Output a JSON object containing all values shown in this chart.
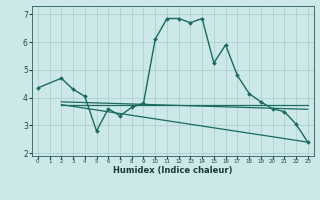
{
  "title": "",
  "xlabel": "Humidex (Indice chaleur)",
  "background_color": "#cce8e8",
  "grid_color": "#aacccc",
  "line_color": "#1a6b60",
  "xlim": [
    -0.5,
    23.5
  ],
  "ylim": [
    1.9,
    7.3
  ],
  "yticks": [
    2,
    3,
    4,
    5,
    6,
    7
  ],
  "xticks": [
    0,
    1,
    2,
    3,
    4,
    5,
    6,
    7,
    8,
    9,
    10,
    11,
    12,
    13,
    14,
    15,
    16,
    17,
    18,
    19,
    20,
    21,
    22,
    23
  ],
  "line1_x": [
    0,
    2,
    3,
    4,
    5,
    6,
    7,
    8,
    9,
    10,
    11,
    12,
    13,
    14,
    15,
    16,
    17,
    18,
    19,
    20,
    21,
    22,
    23
  ],
  "line1_y": [
    4.35,
    4.7,
    4.3,
    4.05,
    2.8,
    3.6,
    3.35,
    3.65,
    3.8,
    6.1,
    6.85,
    6.85,
    6.7,
    6.85,
    5.25,
    5.9,
    4.8,
    4.15,
    3.85,
    3.6,
    3.5,
    3.05,
    2.4
  ],
  "line2_x": [
    2,
    23
  ],
  "line2_y": [
    3.75,
    3.75
  ],
  "line3_x": [
    2,
    23
  ],
  "line3_y": [
    3.85,
    3.58
  ],
  "line4_x": [
    2,
    23
  ],
  "line4_y": [
    3.75,
    2.4
  ]
}
